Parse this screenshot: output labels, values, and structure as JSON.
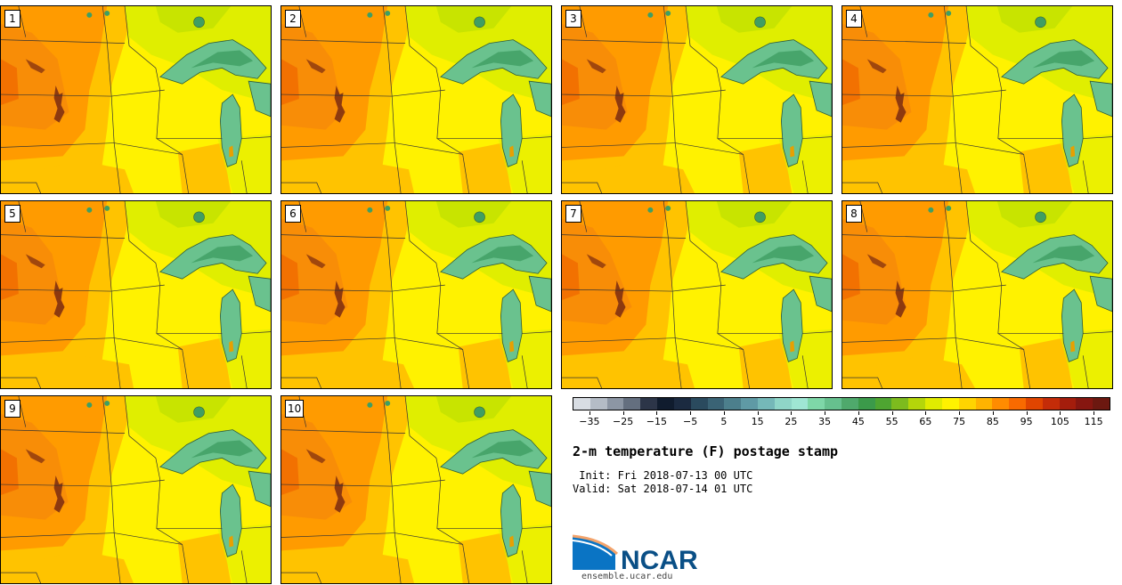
{
  "figure": {
    "title": "2-m temperature (F) postage stamp",
    "init_line": " Init: Fri 2018-07-13 00 UTC",
    "valid_line": "Valid: Sat 2018-07-14 01 UTC",
    "source_url": "ensemble.ucar.edu",
    "logo_text": "NCAR"
  },
  "members": [
    {
      "label": "1"
    },
    {
      "label": "2"
    },
    {
      "label": "3"
    },
    {
      "label": "4"
    },
    {
      "label": "5"
    },
    {
      "label": "6"
    },
    {
      "label": "7"
    },
    {
      "label": "8"
    },
    {
      "label": "9"
    },
    {
      "label": "10"
    }
  ],
  "colorbar": {
    "units": "F",
    "tick_labels": [
      "−35",
      "−25",
      "−15",
      "−5",
      "5",
      "15",
      "25",
      "35",
      "45",
      "55",
      "65",
      "75",
      "85",
      "95",
      "105",
      "115"
    ],
    "colors": [
      "#d8dde3",
      "#b4bcc6",
      "#8c96a4",
      "#646f7f",
      "#2c3548",
      "#101c2e",
      "#1b2a40",
      "#2a4a5e",
      "#3a6375",
      "#4c7f8c",
      "#5f9aa5",
      "#75b8b8",
      "#8fd6c8",
      "#9fe6d4",
      "#7ed7a8",
      "#66c08e",
      "#4fa96c",
      "#3b9a4a",
      "#4ea531",
      "#7dbb1e",
      "#b4d60a",
      "#e0eb00",
      "#fff200",
      "#ffd400",
      "#ffb300",
      "#ff8c00",
      "#f86a00",
      "#e04500",
      "#c42c08",
      "#a41d0c",
      "#861610",
      "#6c1810"
    ],
    "legend_colors": {
      "lake": "#6ac28e",
      "lake_dark": "#3f9e63",
      "hot": "#ff9b00",
      "warm": "#ffc300",
      "mild": "#fff200",
      "cool": "#e0ee00",
      "cooler": "#c8e400"
    }
  }
}
